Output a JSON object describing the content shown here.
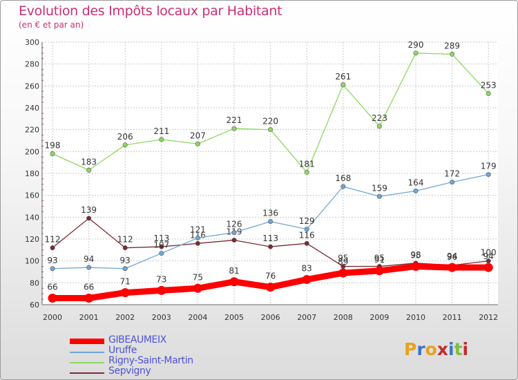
{
  "header": {
    "title": "Evolution des Impôts locaux par Habitant",
    "subtitle": "(en € et par an)"
  },
  "chart_data": {
    "type": "line",
    "title": "Evolution des Impôts locaux par Habitant",
    "subtitle": "(en € et par an)",
    "xlabel": "",
    "ylabel": "",
    "ylim": [
      60,
      300
    ],
    "yticks": [
      "60",
      "80",
      "100",
      "120",
      "140",
      "160",
      "180",
      "200",
      "220",
      "240",
      "260",
      "280",
      "300"
    ],
    "categories": [
      "2000",
      "2001",
      "2002",
      "2003",
      "2004",
      "2005",
      "2006",
      "2007",
      "2008",
      "2009",
      "2010",
      "2011",
      "2012"
    ],
    "grid": true,
    "legend_position": "bottom-left",
    "series": [
      {
        "name": "GIBEAUMEIX",
        "color": "#ff0000",
        "values": [
          66,
          66,
          71,
          73,
          75,
          81,
          76,
          83,
          89,
          91,
          95,
          94,
          94
        ],
        "labels": [
          "66",
          "66",
          "71",
          "73",
          "75",
          "81",
          "76",
          "83",
          "89",
          "91",
          "95",
          "94",
          "94"
        ]
      },
      {
        "name": "Uruffe",
        "color": "#6ea6d7",
        "values": [
          93,
          94,
          93,
          107,
          121,
          126,
          136,
          129,
          168,
          159,
          164,
          172,
          179
        ],
        "labels": [
          "93",
          "94",
          "93",
          "107",
          "121",
          "126",
          "136",
          "129",
          "168",
          "159",
          "164",
          "172",
          "179"
        ]
      },
      {
        "name": "Rigny-Saint-Martin",
        "color": "#8cd860",
        "values": [
          198,
          183,
          206,
          211,
          207,
          221,
          220,
          181,
          261,
          223,
          290,
          289,
          253
        ],
        "labels": [
          "198",
          "183",
          "206",
          "211",
          "207",
          "221",
          "220",
          "181",
          "261",
          "223",
          "290",
          "289",
          "253"
        ]
      },
      {
        "name": "Sepvigny",
        "color": "#7a2a33",
        "values": [
          112,
          139,
          112,
          113,
          116,
          119,
          113,
          116,
          95,
          95,
          98,
          96,
          100
        ],
        "labels": [
          "112",
          "139",
          "112",
          "113",
          "116",
          "119",
          "113",
          "116",
          "95",
          "95",
          "98",
          "96",
          "100"
        ]
      }
    ]
  },
  "legend": {
    "items": [
      {
        "label": "GIBEAUMEIX",
        "color": "#ff0000"
      },
      {
        "label": "Uruffe",
        "color": "#6ea6d7"
      },
      {
        "label": "Rigny-Saint-Martin",
        "color": "#8cd860"
      },
      {
        "label": "Sepvigny",
        "color": "#7a2a33"
      }
    ]
  },
  "branding": {
    "logo_letters": [
      "P",
      "r",
      "o",
      "x",
      "i",
      "t",
      "i"
    ],
    "logo_colors": [
      "#e9a21b",
      "#3b74c6",
      "#e9a21b",
      "#c02d2d",
      "#3b74c6",
      "#7cbf3a",
      "#c02d2d"
    ]
  }
}
